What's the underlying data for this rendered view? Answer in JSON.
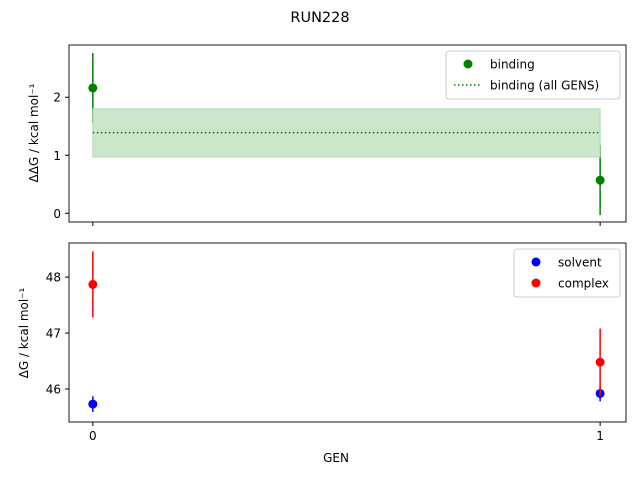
{
  "chart_data": [
    {
      "type": "scatter",
      "title": "RUN228",
      "ylabel": "ΔΔG / kcal mol⁻¹",
      "xlabel": "",
      "xlim": [
        -0.047,
        1.051
      ],
      "ylim": [
        -0.15,
        2.9
      ],
      "yticks": [
        0,
        1,
        2
      ],
      "xticks": [
        0,
        1
      ],
      "xtick_labels_shown": false,
      "legend_placement": "top-right",
      "series": [
        {
          "name": "binding",
          "kind": "errorbar",
          "color": "#008000",
          "x": [
            0,
            1
          ],
          "y": [
            2.16,
            0.57
          ],
          "yerr": [
            0.6,
            0.6
          ]
        },
        {
          "name": "binding (all GENS)",
          "kind": "hline-band",
          "color": "#008000",
          "band_color": "#cce6cc",
          "x": [
            0,
            1
          ],
          "y": 1.39,
          "band": [
            0.97,
            1.8
          ]
        }
      ]
    },
    {
      "type": "scatter",
      "ylabel": "ΔG / kcal mol⁻¹",
      "xlabel": "GEN",
      "xlim": [
        -0.047,
        1.051
      ],
      "ylim": [
        45.41,
        48.61
      ],
      "yticks": [
        46,
        47,
        48
      ],
      "xticks": [
        0,
        1
      ],
      "legend_placement": "top-right",
      "series": [
        {
          "name": "solvent",
          "kind": "errorbar",
          "color": "#0000ff",
          "x": [
            0,
            1
          ],
          "y": [
            45.73,
            45.92
          ],
          "yerr": [
            0.14,
            0.14
          ]
        },
        {
          "name": "complex",
          "kind": "errorbar",
          "color": "#ff0000",
          "x": [
            0,
            1
          ],
          "y": [
            47.87,
            46.48
          ],
          "yerr": [
            0.59,
            0.6
          ]
        }
      ]
    }
  ]
}
